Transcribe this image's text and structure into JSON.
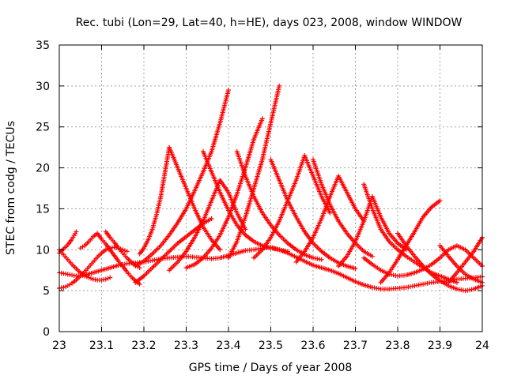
{
  "chart_data": {
    "type": "scatter",
    "title": "Rec. tubi (Lon=29, Lat=40, h=HE), days 023, 2008, window WINDOW",
    "xlabel": "GPS time / Days of year 2008",
    "ylabel": "STEC from codg / TECUs",
    "xlim": [
      23,
      24
    ],
    "ylim": [
      0,
      35
    ],
    "x_ticks": [
      "23",
      "23.1",
      "23.2",
      "23.3",
      "23.4",
      "23.5",
      "23.6",
      "23.7",
      "23.8",
      "23.9",
      "24"
    ],
    "y_ticks": [
      "0",
      "5",
      "10",
      "15",
      "20",
      "25",
      "30",
      "35"
    ],
    "grid": true,
    "marker": "+",
    "color": "#ff0000",
    "series": [
      {
        "x": [
          23.0,
          23.02,
          23.04,
          23.06,
          23.08,
          23.1,
          23.12,
          23.14,
          23.16,
          23.18,
          23.2,
          23.22,
          23.24,
          23.26,
          23.28,
          23.3,
          23.32,
          23.34,
          23.36,
          23.38,
          23.4,
          23.42,
          23.44,
          23.46,
          23.48,
          23.5,
          23.52,
          23.54,
          23.56,
          23.58,
          23.6,
          23.62,
          23.64,
          23.66,
          23.68,
          23.7,
          23.72,
          23.74,
          23.76,
          23.78,
          23.8,
          23.82,
          23.84,
          23.86,
          23.88,
          23.9,
          23.92,
          23.94,
          23.96,
          23.98,
          24.0
        ],
        "y": [
          7.2,
          7.0,
          6.8,
          6.9,
          7.2,
          7.5,
          7.8,
          8.1,
          8.3,
          8.4,
          8.5,
          8.7,
          8.9,
          9.0,
          9.1,
          9.2,
          9.1,
          9.0,
          8.9,
          9.0,
          9.3,
          9.6,
          9.9,
          10.0,
          10.2,
          10.3,
          10.0,
          9.6,
          9.1,
          8.6,
          8.1,
          7.8,
          7.5,
          7.1,
          6.6,
          6.1,
          5.7,
          5.4,
          5.2,
          5.2,
          5.3,
          5.4,
          5.6,
          5.8,
          6.0,
          6.1,
          6.2,
          6.4,
          6.5,
          6.6,
          6.7
        ]
      },
      {
        "x": [
          23.0,
          23.01,
          23.02,
          23.03,
          23.04,
          23.05,
          23.06,
          23.07,
          23.08,
          23.09,
          23.1,
          23.11,
          23.12,
          23.13,
          23.14,
          23.15,
          23.16
        ],
        "y": [
          5.3,
          5.4,
          5.6,
          5.9,
          6.3,
          6.8,
          7.3,
          7.9,
          8.5,
          9.1,
          9.6,
          10.0,
          10.2,
          10.3,
          10.2,
          10.0,
          9.8
        ]
      },
      {
        "x": [
          23.0,
          23.01,
          23.02,
          23.03,
          23.04,
          23.05,
          23.06,
          23.07,
          23.08,
          23.09,
          23.1,
          23.11,
          23.12
        ],
        "y": [
          10.0,
          9.4,
          8.8,
          8.2,
          7.7,
          7.2,
          6.8,
          6.6,
          6.4,
          6.3,
          6.3,
          6.4,
          6.6
        ]
      },
      {
        "x": [
          23.0,
          23.01,
          23.02,
          23.03,
          23.04
        ],
        "y": [
          9.6,
          10.1,
          10.6,
          11.3,
          12.2
        ]
      },
      {
        "x": [
          23.05,
          23.06,
          23.07,
          23.08,
          23.09,
          23.1,
          23.11,
          23.12,
          23.13,
          23.14,
          23.15,
          23.16,
          23.17,
          23.18,
          23.19
        ],
        "y": [
          10.2,
          10.5,
          11.0,
          11.6,
          12.0,
          11.3,
          10.7,
          10.0,
          9.3,
          8.6,
          8.0,
          7.3,
          6.7,
          6.2,
          5.8
        ]
      },
      {
        "x": [
          23.11,
          23.12,
          23.13,
          23.14,
          23.15,
          23.16,
          23.17,
          23.18,
          23.19
        ],
        "y": [
          12.2,
          11.5,
          10.9,
          10.2,
          9.6,
          9.0,
          8.5,
          8.1,
          7.8
        ]
      },
      {
        "x": [
          23.18,
          23.2,
          23.22,
          23.24,
          23.26,
          23.28,
          23.3,
          23.32,
          23.34,
          23.36
        ],
        "y": [
          6.0,
          6.8,
          7.8,
          8.8,
          9.8,
          10.8,
          11.6,
          12.4,
          13.2,
          13.8
        ]
      },
      {
        "x": [
          23.19,
          23.2,
          23.21,
          23.22,
          23.23,
          23.24,
          23.25,
          23.26,
          23.28,
          23.3,
          23.32,
          23.34,
          23.36,
          23.38
        ],
        "y": [
          9.5,
          10.2,
          11.2,
          12.5,
          14.3,
          16.5,
          19.5,
          22.5,
          20.0,
          17.5,
          15.0,
          12.8,
          11.2,
          10.0
        ]
      },
      {
        "x": [
          23.18,
          23.2,
          23.22,
          23.24,
          23.26,
          23.28,
          23.3,
          23.32,
          23.34,
          23.36,
          23.38,
          23.4
        ],
        "y": [
          8.0,
          8.6,
          9.5,
          10.5,
          11.8,
          13.3,
          15.0,
          17.2,
          19.5,
          22.0,
          25.5,
          29.5
        ]
      },
      {
        "x": [
          23.26,
          23.28,
          23.3,
          23.32,
          23.34,
          23.36,
          23.38,
          23.4,
          23.42,
          23.44
        ],
        "y": [
          7.5,
          8.5,
          9.8,
          11.5,
          13.5,
          16.0,
          18.5,
          17.0,
          14.5,
          12.5
        ]
      },
      {
        "x": [
          23.3,
          23.32,
          23.34,
          23.36,
          23.38,
          23.4,
          23.42,
          23.44,
          23.46,
          23.48
        ],
        "y": [
          7.8,
          8.2,
          9.0,
          10.2,
          11.8,
          14.0,
          16.8,
          20.0,
          23.5,
          26.0
        ]
      },
      {
        "x": [
          23.34,
          23.36,
          23.38,
          23.4,
          23.42,
          23.44,
          23.46,
          23.48,
          23.5,
          23.52,
          23.54
        ],
        "y": [
          22.0,
          19.5,
          17.0,
          14.8,
          13.0,
          11.8,
          11.0,
          10.5,
          10.2,
          10.0,
          9.8
        ]
      },
      {
        "x": [
          23.4,
          23.42,
          23.44,
          23.46,
          23.48,
          23.5,
          23.52
        ],
        "y": [
          9.0,
          11.0,
          14.0,
          17.5,
          21.0,
          25.5,
          30.0
        ]
      },
      {
        "x": [
          23.42,
          23.44,
          23.46,
          23.48,
          23.5,
          23.52,
          23.54,
          23.56,
          23.58,
          23.6,
          23.62
        ],
        "y": [
          22.0,
          19.0,
          16.5,
          14.5,
          13.0,
          11.8,
          10.8,
          10.0,
          9.4,
          9.0,
          8.8
        ]
      },
      {
        "x": [
          23.46,
          23.48,
          23.5,
          23.52,
          23.54,
          23.56,
          23.58,
          23.6,
          23.62,
          23.64
        ],
        "y": [
          9.0,
          10.0,
          11.5,
          13.5,
          16.0,
          18.5,
          21.5,
          19.0,
          16.5,
          14.5
        ]
      },
      {
        "x": [
          23.5,
          23.52,
          23.54,
          23.56,
          23.58,
          23.6,
          23.62,
          23.64,
          23.66,
          23.68,
          23.7
        ],
        "y": [
          21.0,
          18.5,
          16.0,
          14.0,
          12.2,
          10.8,
          9.8,
          9.0,
          8.4,
          8.0,
          7.7
        ]
      },
      {
        "x": [
          23.56,
          23.58,
          23.6,
          23.62,
          23.64,
          23.66,
          23.68,
          23.7,
          23.72
        ],
        "y": [
          8.5,
          9.8,
          11.5,
          13.8,
          16.5,
          19.0,
          17.0,
          15.0,
          13.5
        ]
      },
      {
        "x": [
          23.6,
          23.62,
          23.64,
          23.66,
          23.68,
          23.7,
          23.72,
          23.74
        ],
        "y": [
          21.0,
          18.0,
          15.5,
          13.5,
          12.0,
          10.8,
          9.8,
          9.2
        ]
      },
      {
        "x": [
          23.66,
          23.68,
          23.7,
          23.72,
          23.74,
          23.76,
          23.78,
          23.8,
          23.82
        ],
        "y": [
          8.0,
          9.2,
          11.0,
          13.5,
          16.5,
          14.0,
          12.0,
          10.8,
          10.0
        ]
      },
      {
        "x": [
          23.72,
          23.74,
          23.76,
          23.78,
          23.8,
          23.82,
          23.84,
          23.86,
          23.88,
          23.9,
          23.92,
          23.94
        ],
        "y": [
          18.0,
          15.0,
          12.5,
          11.0,
          10.0,
          9.2,
          8.5,
          7.8,
          7.2,
          6.8,
          6.4,
          6.0
        ]
      },
      {
        "x": [
          23.76,
          23.78,
          23.8,
          23.82,
          23.84,
          23.86,
          23.88,
          23.9
        ],
        "y": [
          6.0,
          7.2,
          8.8,
          10.5,
          12.2,
          14.0,
          15.2,
          16.0
        ]
      },
      {
        "x": [
          23.72,
          23.74,
          23.76,
          23.78,
          23.8,
          23.82,
          23.84,
          23.86,
          23.88,
          23.9,
          23.92,
          23.94,
          23.96,
          23.98,
          24.0
        ],
        "y": [
          9.0,
          8.2,
          7.5,
          7.0,
          6.8,
          6.9,
          7.2,
          7.6,
          8.2,
          9.0,
          10.0,
          10.5,
          10.0,
          9.0,
          8.0
        ]
      },
      {
        "x": [
          23.8,
          23.82,
          23.84,
          23.86,
          23.88,
          23.9,
          23.92,
          23.94,
          23.96,
          23.98,
          24.0
        ],
        "y": [
          12.0,
          10.5,
          9.2,
          8.0,
          7.0,
          6.2,
          5.6,
          5.2,
          5.0,
          5.2,
          5.6
        ]
      },
      {
        "x": [
          23.9,
          23.92,
          23.94,
          23.96,
          23.98,
          24.0
        ],
        "y": [
          10.5,
          9.2,
          8.0,
          7.0,
          6.4,
          6.0
        ]
      },
      {
        "x": [
          23.92,
          23.94,
          23.96,
          23.98,
          24.0
        ],
        "y": [
          6.0,
          7.2,
          8.5,
          9.8,
          11.5
        ]
      }
    ]
  }
}
